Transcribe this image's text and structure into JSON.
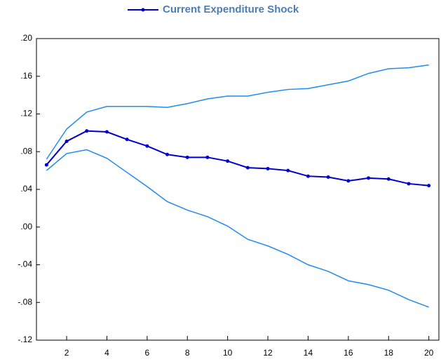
{
  "chart_data": {
    "type": "line",
    "x": [
      1,
      2,
      3,
      4,
      5,
      6,
      7,
      8,
      9,
      10,
      11,
      12,
      13,
      14,
      15,
      16,
      17,
      18,
      19,
      20
    ],
    "series": [
      {
        "name": "Current Expenditure Shock",
        "color": "#0000cc",
        "markers": true,
        "values": [
          0.066,
          0.091,
          0.102,
          0.101,
          0.093,
          0.086,
          0.077,
          0.074,
          0.074,
          0.07,
          0.063,
          0.062,
          0.06,
          0.054,
          0.053,
          0.049,
          0.052,
          0.051,
          0.046,
          0.044
        ]
      },
      {
        "color": "#1e8cf0",
        "markers": false,
        "values": [
          0.072,
          0.104,
          0.122,
          0.128,
          0.128,
          0.128,
          0.127,
          0.131,
          0.136,
          0.139,
          0.139,
          0.143,
          0.146,
          0.147,
          0.151,
          0.155,
          0.163,
          0.168,
          0.169,
          0.172
        ]
      },
      {
        "color": "#1e8cf0",
        "markers": false,
        "values": [
          0.06,
          0.078,
          0.082,
          0.073,
          0.058,
          0.043,
          0.027,
          0.018,
          0.011,
          0.001,
          -0.013,
          -0.02,
          -0.029,
          -0.04,
          -0.047,
          -0.057,
          -0.061,
          -0.067,
          -0.077,
          -0.085
        ]
      }
    ],
    "xlim": [
      0.5,
      20.5
    ],
    "xticks": [
      2,
      4,
      6,
      8,
      10,
      12,
      14,
      16,
      18,
      20
    ],
    "ylim": [
      -0.12,
      0.2
    ],
    "yticks": [
      {
        "value": -0.12,
        "label": "-.12"
      },
      {
        "value": -0.08,
        "label": "-.08"
      },
      {
        "value": -0.04,
        "label": "-.04"
      },
      {
        "value": 0,
        "label": ".00"
      },
      {
        "value": 0.04,
        "label": ".04"
      },
      {
        "value": 0.08,
        "label": ".08"
      },
      {
        "value": 0.12,
        "label": ".12"
      },
      {
        "value": 0.16,
        "label": ".16"
      },
      {
        "value": 0.2,
        "label": ".20"
      }
    ],
    "grid": false
  }
}
